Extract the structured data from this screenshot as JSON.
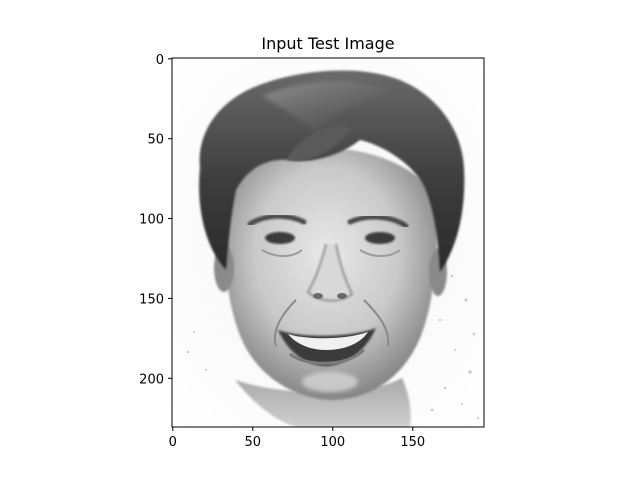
{
  "figure": {
    "title": "Input Test Image",
    "image_description_key": "grayscale-face-photo",
    "colormap": "gray",
    "background_color": "#ffffff",
    "axis_color": "#000000"
  },
  "chart_data": {
    "type": "image",
    "title": "Input Test Image",
    "xlabel": "",
    "ylabel": "",
    "x_ticks": [
      0,
      50,
      100,
      150
    ],
    "y_ticks": [
      0,
      50,
      100,
      150,
      200
    ],
    "xlim": [
      -0.5,
      194.5
    ],
    "ylim": [
      230.5,
      -0.5
    ],
    "grid": false,
    "legend": "none"
  }
}
